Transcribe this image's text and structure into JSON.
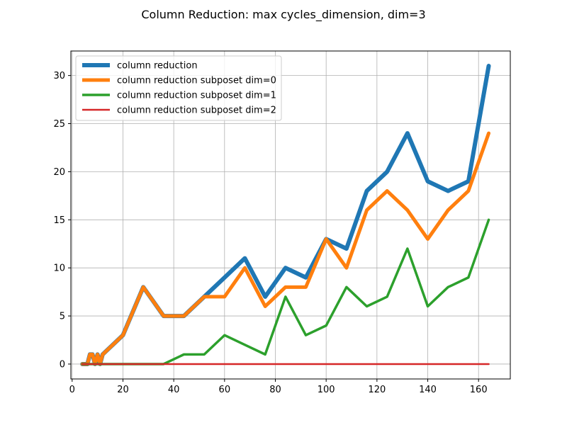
{
  "chart_data": {
    "type": "line",
    "title": "Column Reduction: max cycles_dimension, dim=3",
    "xlabel": "",
    "ylabel": "",
    "xlim": [
      -0.5,
      172.5
    ],
    "ylim": [
      -1.55,
      32.55
    ],
    "xticks": [
      0,
      20,
      40,
      60,
      80,
      100,
      120,
      140,
      160
    ],
    "yticks": [
      0,
      5,
      10,
      15,
      20,
      25,
      30
    ],
    "grid": true,
    "legend_position": "upper-left",
    "series": [
      {
        "name": "column reduction",
        "color": "#1f77b4",
        "x": [
          4,
          5,
          6,
          7,
          8,
          9,
          10,
          11,
          12,
          20,
          28,
          36,
          44,
          52,
          60,
          68,
          76,
          84,
          92,
          100,
          108,
          116,
          124,
          132,
          140,
          148,
          156,
          164
        ],
        "y": [
          0,
          0,
          0,
          1,
          1,
          0,
          1,
          0,
          1,
          3,
          8,
          5,
          5,
          7,
          9,
          11,
          7,
          10,
          9,
          13,
          12,
          18,
          20,
          24,
          19,
          18,
          19,
          31
        ]
      },
      {
        "name": "column reduction subposet dim=0",
        "color": "#ff7f0e",
        "x": [
          4,
          5,
          6,
          7,
          8,
          9,
          10,
          11,
          12,
          20,
          28,
          36,
          44,
          52,
          60,
          68,
          76,
          84,
          92,
          100,
          108,
          116,
          124,
          132,
          140,
          148,
          156,
          164
        ],
        "y": [
          0,
          0,
          0,
          1,
          1,
          0,
          1,
          0,
          1,
          3,
          8,
          5,
          5,
          7,
          7,
          10,
          6,
          8,
          8,
          13,
          10,
          16,
          18,
          16,
          13,
          16,
          18,
          24
        ]
      },
      {
        "name": "column reduction subposet dim=1",
        "color": "#2ca02c",
        "x": [
          4,
          12,
          20,
          28,
          36,
          44,
          52,
          60,
          68,
          76,
          84,
          92,
          100,
          108,
          116,
          124,
          132,
          140,
          148,
          156,
          164
        ],
        "y": [
          0,
          0,
          0,
          0,
          0,
          1,
          1,
          3,
          2,
          1,
          7,
          3,
          4,
          8,
          6,
          7,
          12,
          6,
          8,
          9,
          15
        ]
      },
      {
        "name": "column reduction subposet dim=2",
        "color": "#d62728",
        "x": [
          4,
          164
        ],
        "y": [
          0,
          0
        ]
      }
    ]
  }
}
